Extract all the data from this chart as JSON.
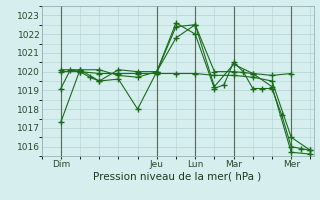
{
  "title": "",
  "xlabel": "Pression niveau de la mer( hPa )",
  "ylabel": "",
  "background_color": "#d6eeee",
  "grid_color": "#b0d4d4",
  "line_color": "#1a6b1a",
  "ylim": [
    1015.5,
    1023.5
  ],
  "xlim": [
    0,
    170
  ],
  "yticks": [
    1016,
    1017,
    1018,
    1019,
    1020,
    1021,
    1022,
    1023
  ],
  "xtick_labels": [
    "Dim",
    "Jeu",
    "Lun",
    "Mar",
    "Mer"
  ],
  "xtick_positions": [
    12,
    72,
    96,
    120,
    156
  ],
  "vlines": [
    12,
    72,
    96,
    120,
    156
  ],
  "series": [
    {
      "x": [
        12,
        18,
        24,
        30,
        36,
        48,
        60,
        72,
        84,
        96,
        108,
        114,
        120,
        126,
        132,
        138,
        144,
        150,
        156,
        162,
        168
      ],
      "y": [
        1019.1,
        1020.1,
        1020.0,
        1019.7,
        1019.5,
        1020.1,
        1020.0,
        1020.0,
        1022.6,
        1022.0,
        1019.1,
        1019.3,
        1020.5,
        1020.0,
        1019.1,
        1019.1,
        1019.1,
        1017.7,
        1016.0,
        1015.9,
        1015.8
      ]
    },
    {
      "x": [
        12,
        24,
        36,
        48,
        60,
        72,
        84,
        96,
        108,
        120,
        132,
        144,
        156,
        168
      ],
      "y": [
        1017.3,
        1020.1,
        1020.1,
        1019.8,
        1019.7,
        1020.0,
        1022.4,
        1022.5,
        1019.2,
        1020.4,
        1019.9,
        1019.2,
        1015.7,
        1015.6
      ]
    },
    {
      "x": [
        12,
        24,
        36,
        48,
        60,
        72,
        84,
        96,
        108,
        120,
        132,
        144,
        156
      ],
      "y": [
        1020.1,
        1020.1,
        1019.5,
        1019.6,
        1018.0,
        1020.0,
        1021.8,
        1022.5,
        1020.0,
        1020.0,
        1019.9,
        1019.8,
        1019.9
      ]
    },
    {
      "x": [
        12,
        24,
        36,
        48,
        60,
        72,
        84,
        96,
        108,
        120,
        132,
        144,
        156,
        168
      ],
      "y": [
        1020.0,
        1020.0,
        1019.9,
        1019.9,
        1019.9,
        1019.9,
        1019.9,
        1019.9,
        1019.8,
        1019.8,
        1019.7,
        1019.5,
        1016.5,
        1015.8
      ]
    }
  ]
}
